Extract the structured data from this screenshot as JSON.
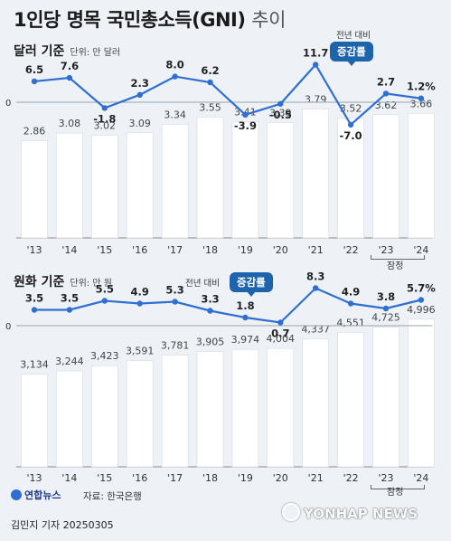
{
  "title": "1인당 명목 국민총소득(GNI)",
  "title_suffix": "추이",
  "sections": {
    "usd": {
      "title": "달러 기준",
      "unit": "단위: 만 달러"
    },
    "krw": {
      "title": "원화 기준",
      "unit": "단위: 만 원"
    }
  },
  "badge": {
    "note": "전년 대비",
    "label": "증감률"
  },
  "prelim_label": "잠정",
  "source": "자료: 한국은행",
  "logo_text": "연합뉴스",
  "author": "김민지 기자  20250305",
  "watermark": "YONHAP NEWS",
  "colors": {
    "bar": "#ffffff",
    "line": "#2f6fd1",
    "badge": "#1e64ad",
    "background": "#eef2f7"
  },
  "chart_data": [
    {
      "type": "bar",
      "name": "usd",
      "categories": [
        "'13",
        "'14",
        "'15",
        "'16",
        "'17",
        "'18",
        "'19",
        "'20",
        "'21",
        "'22",
        "'23",
        "'24"
      ],
      "values": [
        2.86,
        3.08,
        3.02,
        3.09,
        3.34,
        3.55,
        3.41,
        3.39,
        3.79,
        3.52,
        3.62,
        3.66
      ],
      "value_labels": [
        "2.86",
        "3.08",
        "3.02",
        "3.09",
        "3.34",
        "3.55",
        "3.41",
        "3.39",
        "3.79",
        "3.52",
        "3.62",
        "3.66"
      ],
      "ylim": [
        0,
        4.2
      ],
      "growth": {
        "type": "line",
        "values": [
          6.5,
          7.6,
          -1.8,
          2.3,
          8.0,
          6.2,
          -3.9,
          -0.5,
          11.7,
          -7.0,
          2.7,
          1.2
        ],
        "labels": [
          "6.5",
          "7.6",
          "-1.8",
          "2.3",
          "8.0",
          "6.2",
          "-3.9",
          "-0.5",
          "11.7",
          "-7.0",
          "2.7",
          "1.2%"
        ],
        "zero_label": "0",
        "ylim": [
          -8,
          13
        ]
      }
    },
    {
      "type": "bar",
      "name": "krw",
      "categories": [
        "'13",
        "'14",
        "'15",
        "'16",
        "'17",
        "'18",
        "'19",
        "'20",
        "'21",
        "'22",
        "'23",
        "'24"
      ],
      "values": [
        3134,
        3244,
        3423,
        3591,
        3781,
        3905,
        3974,
        4004,
        4337,
        4551,
        4725,
        4996
      ],
      "value_labels": [
        "3,134",
        "3,244",
        "3,423",
        "3,591",
        "3,781",
        "3,905",
        "3,974",
        "4,004",
        "4,337",
        "4,551",
        "4,725",
        "4,996"
      ],
      "ylim": [
        0,
        5450
      ],
      "growth": {
        "type": "line",
        "values": [
          3.5,
          3.5,
          5.5,
          4.9,
          5.3,
          3.3,
          1.8,
          0.7,
          8.3,
          4.9,
          3.8,
          5.7
        ],
        "labels": [
          "3.5",
          "3.5",
          "5.5",
          "4.9",
          "5.3",
          "3.3",
          "1.8",
          "0.7",
          "8.3",
          "4.9",
          "3.8",
          "5.7%"
        ],
        "zero_label": "0",
        "ylim": [
          0,
          9
        ]
      }
    }
  ]
}
